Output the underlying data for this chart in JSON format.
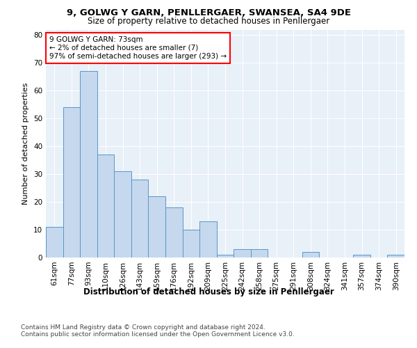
{
  "title1": "9, GOLWG Y GARN, PENLLERGAER, SWANSEA, SA4 9DE",
  "title2": "Size of property relative to detached houses in Penllergaer",
  "xlabel": "Distribution of detached houses by size in Penllergaer",
  "ylabel": "Number of detached properties",
  "categories": [
    "61sqm",
    "77sqm",
    "93sqm",
    "110sqm",
    "126sqm",
    "143sqm",
    "159sqm",
    "176sqm",
    "192sqm",
    "209sqm",
    "225sqm",
    "242sqm",
    "258sqm",
    "275sqm",
    "291sqm",
    "308sqm",
    "324sqm",
    "341sqm",
    "357sqm",
    "374sqm",
    "390sqm"
  ],
  "values": [
    11,
    54,
    67,
    37,
    31,
    28,
    22,
    18,
    10,
    13,
    1,
    3,
    3,
    0,
    0,
    2,
    0,
    0,
    1,
    0,
    1
  ],
  "bar_color": "#c5d8ed",
  "bar_edge_color": "#5a96c8",
  "annotation_box_text": "9 GOLWG Y GARN: 73sqm\n← 2% of detached houses are smaller (7)\n97% of semi-detached houses are larger (293) →",
  "ylim": [
    0,
    82
  ],
  "yticks": [
    0,
    10,
    20,
    30,
    40,
    50,
    60,
    70,
    80
  ],
  "bg_color": "#e8f0f8",
  "footer1": "Contains HM Land Registry data © Crown copyright and database right 2024.",
  "footer2": "Contains public sector information licensed under the Open Government Licence v3.0.",
  "title1_fontsize": 9.5,
  "title2_fontsize": 8.5,
  "xlabel_fontsize": 8.5,
  "ylabel_fontsize": 8,
  "tick_fontsize": 7.5,
  "annotation_fontsize": 7.5,
  "footer_fontsize": 6.5
}
